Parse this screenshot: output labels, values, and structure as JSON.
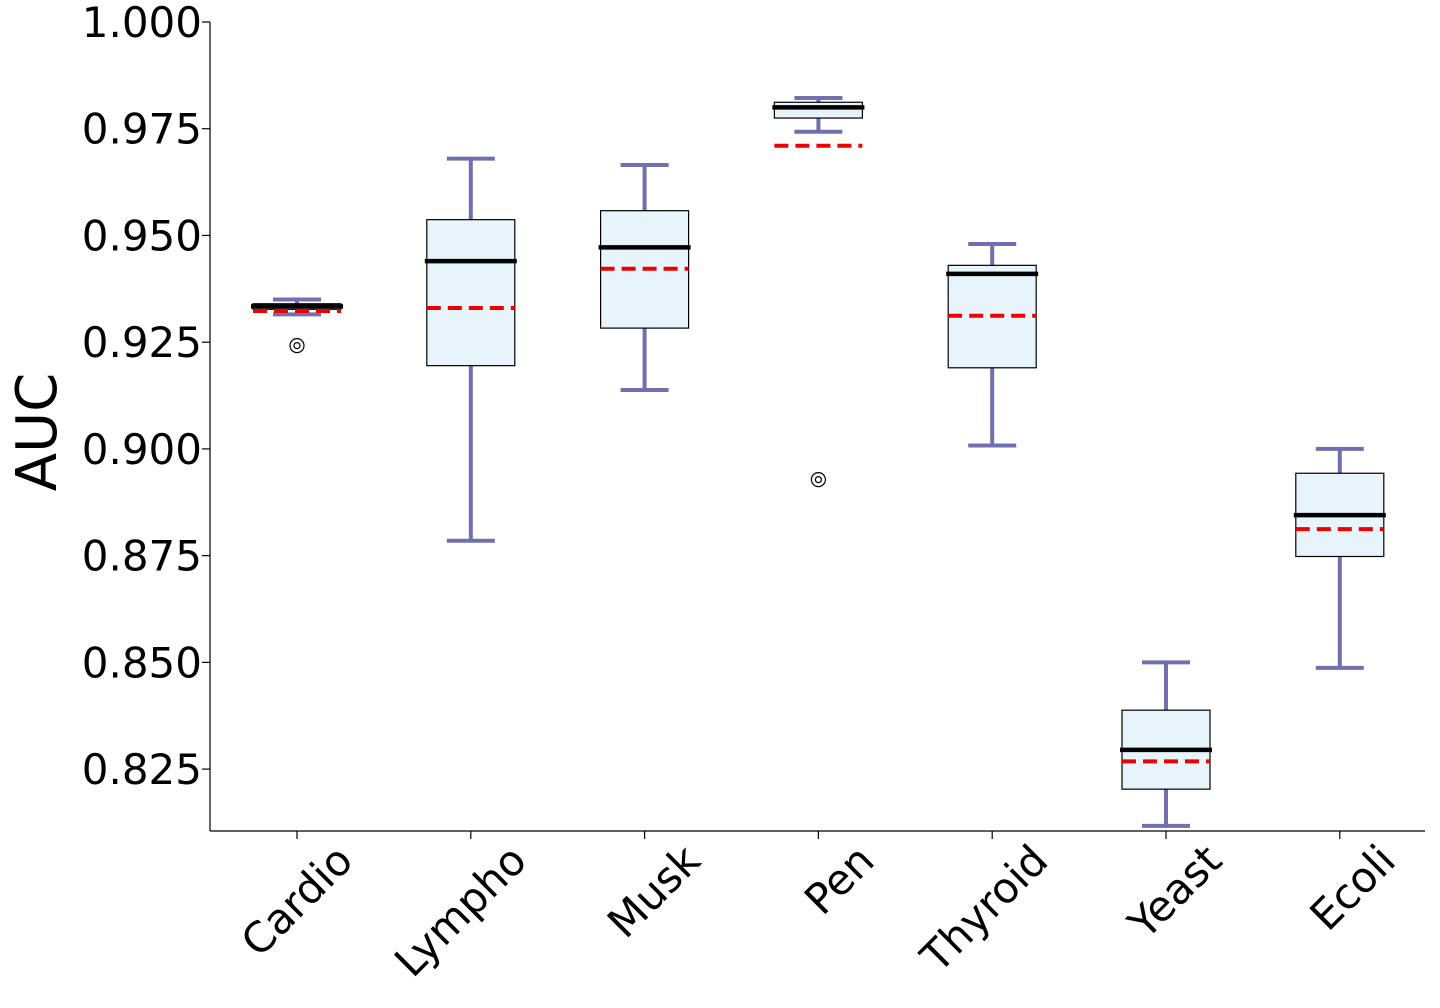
{
  "chart_data": {
    "type": "box",
    "title": "",
    "xlabel": "",
    "ylabel": "AUC",
    "ylim": [
      0.8105,
      1.0
    ],
    "yticks": [
      "1.000",
      "0.975",
      "0.950",
      "0.925",
      "0.900",
      "0.875",
      "0.850",
      "0.825"
    ],
    "ytick_values": [
      1.0,
      0.975,
      0.95,
      0.925,
      0.9,
      0.875,
      0.85,
      0.825
    ],
    "categories": [
      "Cardio",
      "Lympho",
      "Musk",
      "Pen",
      "Thyroid",
      "Yeast",
      "Ecoli"
    ],
    "grid": false,
    "boxes": [
      {
        "label": "Cardio",
        "whisker_low": 0.9315,
        "q1": 0.9327,
        "median": 0.9334,
        "mean": 0.9323,
        "q3": 0.934,
        "whisker_high": 0.935,
        "outliers": [
          0.9242
        ]
      },
      {
        "label": "Lympho",
        "whisker_low": 0.8785,
        "q1": 0.9195,
        "median": 0.944,
        "mean": 0.933,
        "q3": 0.9537,
        "whisker_high": 0.968,
        "outliers": []
      },
      {
        "label": "Musk",
        "whisker_low": 0.9138,
        "q1": 0.9283,
        "median": 0.9472,
        "mean": 0.9422,
        "q3": 0.9558,
        "whisker_high": 0.9665,
        "outliers": []
      },
      {
        "label": "Pen",
        "whisker_low": 0.9743,
        "q1": 0.9775,
        "median": 0.98,
        "mean": 0.971,
        "q3": 0.9812,
        "whisker_high": 0.9822,
        "outliers": [
          0.8928
        ]
      },
      {
        "label": "Thyroid",
        "whisker_low": 0.9008,
        "q1": 0.919,
        "median": 0.941,
        "mean": 0.9312,
        "q3": 0.943,
        "whisker_high": 0.948,
        "outliers": []
      },
      {
        "label": "Yeast",
        "whisker_low": 0.8117,
        "q1": 0.8203,
        "median": 0.8295,
        "mean": 0.8268,
        "q3": 0.8388,
        "whisker_high": 0.85,
        "outliers": []
      },
      {
        "label": "Ecoli",
        "whisker_low": 0.8487,
        "q1": 0.8748,
        "median": 0.8845,
        "mean": 0.8812,
        "q3": 0.8943,
        "whisker_high": 0.9,
        "outliers": []
      }
    ],
    "colors": {
      "box_fill": "#e8f4fb",
      "box_edge": "#000000",
      "whisker": "#7070b0",
      "median": "#000000",
      "mean": "#ee0000"
    }
  }
}
